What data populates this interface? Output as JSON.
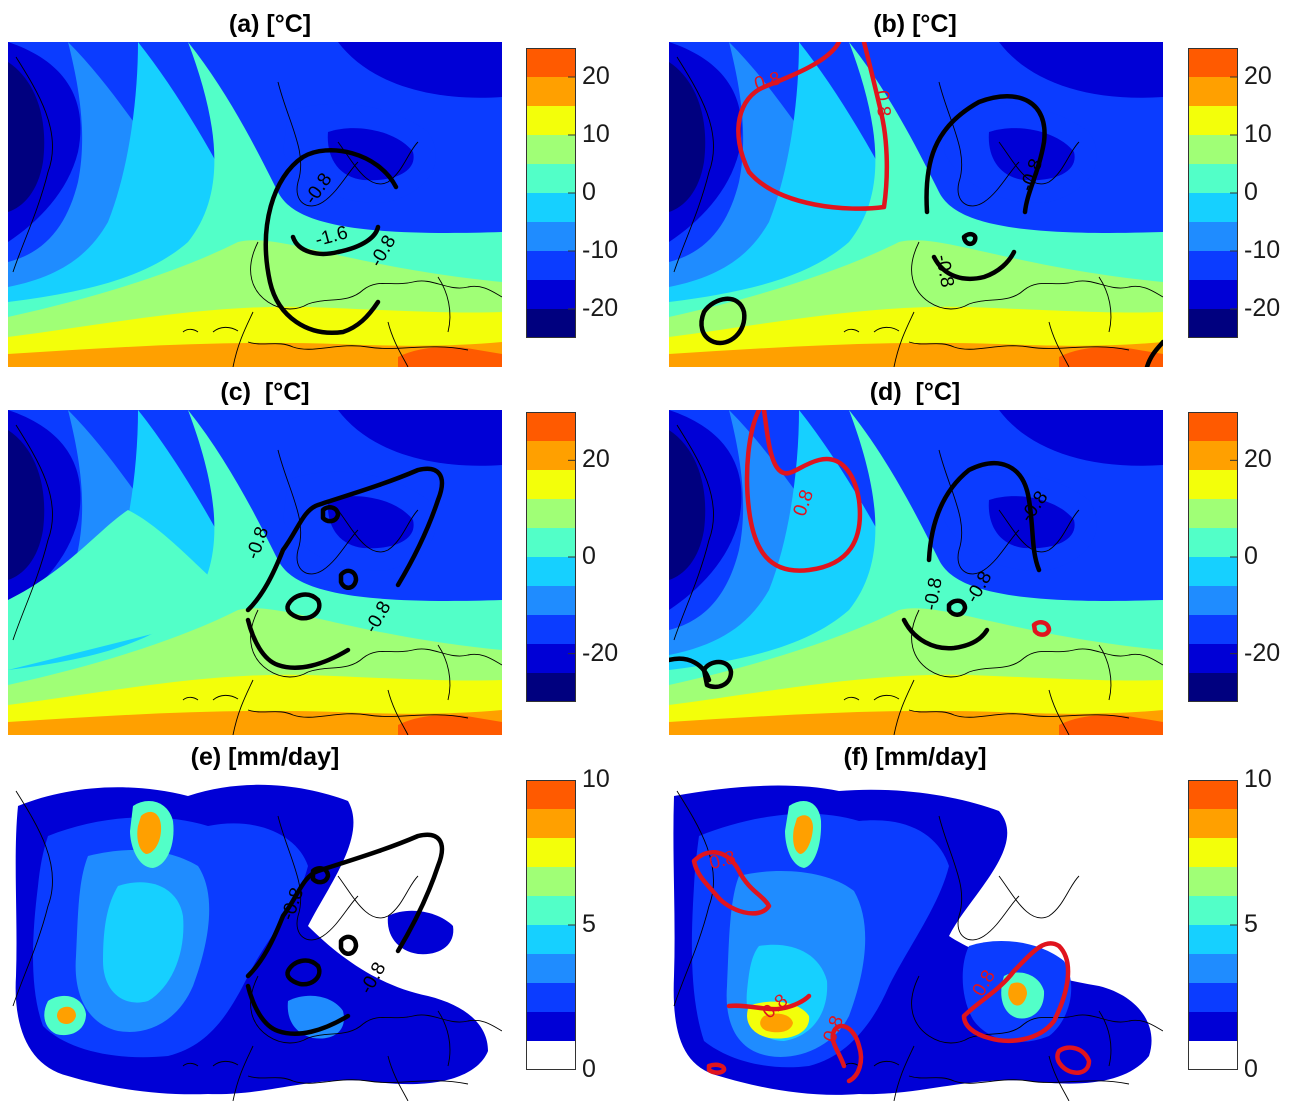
{
  "panels": [
    {
      "id": "a",
      "title": "(a) [°C]",
      "field": "temp",
      "colorbar": {
        "ticks": [
          "20",
          "10",
          "0",
          "-10",
          "-20"
        ],
        "range": [
          -25,
          25
        ],
        "levels": 10
      }
    },
    {
      "id": "b",
      "title": "(b) [°C]",
      "field": "temp",
      "colorbar": {
        "ticks": [
          "20",
          "10",
          "0",
          "-10",
          "-20"
        ],
        "range": [
          -25,
          25
        ],
        "levels": 10
      }
    },
    {
      "id": "c",
      "title": "(c)  [°C]",
      "field": "temp",
      "colorbar": {
        "ticks": [
          "20",
          "0",
          "-20"
        ],
        "range": [
          -30,
          30
        ],
        "levels": 10
      }
    },
    {
      "id": "d",
      "title": "(d)  [°C]",
      "field": "temp",
      "colorbar": {
        "ticks": [
          "20",
          "0",
          "-20"
        ],
        "range": [
          -30,
          30
        ],
        "levels": 10
      }
    },
    {
      "id": "e",
      "title": "(e) [mm/day]",
      "field": "precip",
      "colorbar": {
        "ticks": [
          "10",
          "5",
          "0"
        ],
        "range": [
          0,
          10
        ],
        "levels": 10
      }
    },
    {
      "id": "f",
      "title": "(f) [mm/day]",
      "field": "precip",
      "colorbar": {
        "ticks": [
          "10",
          "5",
          "0"
        ],
        "range": [
          0,
          10
        ],
        "levels": 10
      }
    }
  ],
  "contour_labels": {
    "a": [
      "-1.6",
      "-0.8",
      "-0.8"
    ],
    "b": [
      "0.8",
      "0.8",
      "-0.8",
      "-0.8"
    ],
    "c": [
      "-0.8",
      "-0.8"
    ],
    "d": [
      "0.8",
      "-0.8",
      "-0.8",
      "-0.8"
    ],
    "e": [
      "-0.8",
      "-0.8"
    ],
    "f": [
      "0.8",
      "0.8",
      "0.8",
      "0.8"
    ]
  },
  "colors": {
    "jet": [
      "#00007f",
      "#0000d6",
      "#0b3cff",
      "#1f8cff",
      "#16d0ff",
      "#52ffc8",
      "#a0ff76",
      "#f3ff0a",
      "#ffa000",
      "#ff5a00"
    ],
    "negative_contour": "#000000",
    "positive_contour": "#e0141e",
    "coast": "#000000"
  },
  "chart_data": [
    {
      "type": "heatmap",
      "title": "(a) [°C]",
      "colorbar_ticks": [
        20,
        10,
        0,
        -10,
        -20
      ],
      "zlim": [
        -25,
        25
      ],
      "contour_levels": [
        -1.6,
        -0.8
      ]
    },
    {
      "type": "heatmap",
      "title": "(b) [°C]",
      "colorbar_ticks": [
        20,
        10,
        0,
        -10,
        -20
      ],
      "zlim": [
        -25,
        25
      ],
      "contour_levels": [
        -0.8,
        0.8
      ]
    },
    {
      "type": "heatmap",
      "title": "(c)  [°C]",
      "colorbar_ticks": [
        20,
        0,
        -20
      ],
      "zlim": [
        -30,
        30
      ],
      "contour_levels": [
        -0.8
      ]
    },
    {
      "type": "heatmap",
      "title": "(d)  [°C]",
      "colorbar_ticks": [
        20,
        0,
        -20
      ],
      "zlim": [
        -30,
        30
      ],
      "contour_levels": [
        -0.8,
        0.8
      ]
    },
    {
      "type": "heatmap",
      "title": "(e) [mm/day]",
      "colorbar_ticks": [
        10,
        5,
        0
      ],
      "zlim": [
        0,
        10
      ],
      "contour_levels": [
        -0.8
      ]
    },
    {
      "type": "heatmap",
      "title": "(f) [mm/day]",
      "colorbar_ticks": [
        10,
        5,
        0
      ],
      "zlim": [
        0,
        10
      ],
      "contour_levels": [
        0.8
      ]
    }
  ]
}
